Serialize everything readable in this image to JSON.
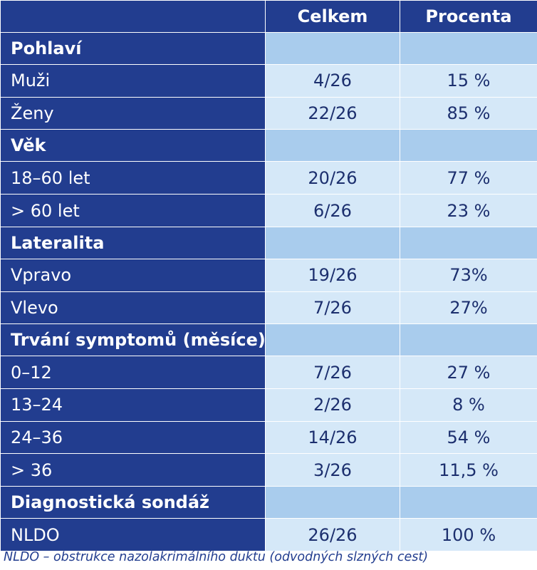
{
  "header": {
    "col_total": "Celkem",
    "col_percent": "Procenta"
  },
  "sections": [
    {
      "title": "Pohlaví",
      "rows": [
        {
          "label": "Muži",
          "total": "4/26",
          "percent": "15 %"
        },
        {
          "label": "Ženy",
          "total": "22/26",
          "percent": "85 %"
        }
      ]
    },
    {
      "title": "Věk",
      "rows": [
        {
          "label": "18–60 let",
          "total": "20/26",
          "percent": "77 %"
        },
        {
          "label": "> 60 let",
          "total": "6/26",
          "percent": "23 %"
        }
      ]
    },
    {
      "title": "Lateralita",
      "rows": [
        {
          "label": "Vpravo",
          "total": "19/26",
          "percent": "73%"
        },
        {
          "label": "Vlevo",
          "total": "7/26",
          "percent": "27%"
        }
      ]
    },
    {
      "title": "Trvání symptomů (měsíce)",
      "rows": [
        {
          "label": "0–12",
          "total": "7/26",
          "percent": "27 %"
        },
        {
          "label": "13–24",
          "total": "2/26",
          "percent": "8 %"
        },
        {
          "label": "24–36",
          "total": "14/26",
          "percent": "54 %"
        },
        {
          "label": "> 36",
          "total": "3/26",
          "percent": "11,5 %"
        }
      ]
    },
    {
      "title": "Diagnostická sondáž",
      "rows": [
        {
          "label": "NLDO",
          "total": "26/26",
          "percent": "100 %"
        }
      ]
    }
  ],
  "caption": "NLDO – obstrukce nazolakrimálního duktu (odvodných slzných cest)",
  "colors": {
    "dark_blue": "#223d8f",
    "section_blue": "#a9cced",
    "cell_blue": "#d5e8f8",
    "text_blue": "#1c2f6e"
  }
}
